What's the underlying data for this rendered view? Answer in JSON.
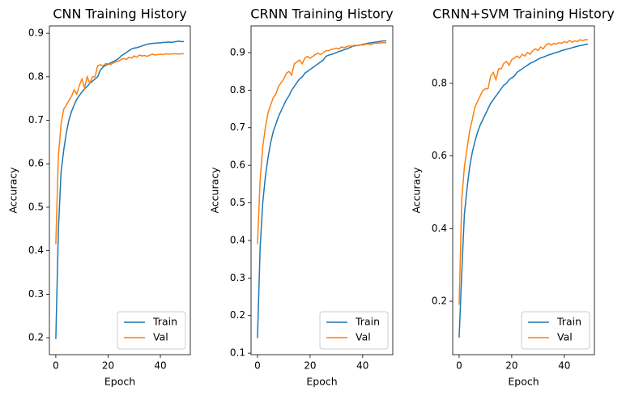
{
  "chart_data": [
    {
      "type": "line",
      "title": "CNN Training History",
      "x_label": "Epoch",
      "y_label": "Accuracy",
      "x": [
        0,
        1,
        2,
        3,
        4,
        5,
        6,
        7,
        8,
        9,
        10,
        11,
        12,
        13,
        14,
        15,
        16,
        17,
        18,
        19,
        20,
        21,
        22,
        23,
        24,
        25,
        26,
        27,
        28,
        29,
        30,
        31,
        32,
        33,
        34,
        35,
        36,
        37,
        38,
        39,
        40,
        41,
        42,
        43,
        44,
        45,
        46,
        47,
        48,
        49
      ],
      "xlim": [
        -2.45,
        51.45
      ],
      "xticks": [
        0,
        20,
        40
      ],
      "ylim": [
        0.161,
        0.917
      ],
      "yticks": [
        0.2,
        0.3,
        0.4,
        0.5,
        0.6,
        0.7,
        0.8,
        0.9
      ],
      "legend": "lower right",
      "series": [
        {
          "name": "Train",
          "color": "#1f77b4",
          "values": [
            0.197,
            0.45,
            0.58,
            0.63,
            0.67,
            0.7,
            0.72,
            0.735,
            0.748,
            0.757,
            0.765,
            0.772,
            0.778,
            0.785,
            0.79,
            0.795,
            0.8,
            0.815,
            0.822,
            0.826,
            0.829,
            0.832,
            0.835,
            0.838,
            0.842,
            0.848,
            0.852,
            0.856,
            0.86,
            0.864,
            0.866,
            0.867,
            0.869,
            0.871,
            0.873,
            0.875,
            0.876,
            0.877,
            0.877,
            0.878,
            0.878,
            0.879,
            0.879,
            0.88,
            0.879,
            0.88,
            0.881,
            0.882,
            0.881,
            0.881
          ]
        },
        {
          "name": "Val",
          "color": "#ff7f0e",
          "values": [
            0.415,
            0.62,
            0.69,
            0.725,
            0.735,
            0.745,
            0.755,
            0.77,
            0.76,
            0.78,
            0.795,
            0.775,
            0.8,
            0.785,
            0.8,
            0.8,
            0.825,
            0.828,
            0.825,
            0.83,
            0.83,
            0.828,
            0.832,
            0.835,
            0.836,
            0.84,
            0.842,
            0.84,
            0.845,
            0.843,
            0.848,
            0.845,
            0.85,
            0.848,
            0.849,
            0.847,
            0.85,
            0.852,
            0.85,
            0.851,
            0.852,
            0.851,
            0.853,
            0.852,
            0.852,
            0.853,
            0.853,
            0.852,
            0.853,
            0.853
          ]
        }
      ]
    },
    {
      "type": "line",
      "title": "CRNN Training History",
      "x_label": "Epoch",
      "y_label": "Accuracy",
      "x": [
        0,
        1,
        2,
        3,
        4,
        5,
        6,
        7,
        8,
        9,
        10,
        11,
        12,
        13,
        14,
        15,
        16,
        17,
        18,
        19,
        20,
        21,
        22,
        23,
        24,
        25,
        26,
        27,
        28,
        29,
        30,
        31,
        32,
        33,
        34,
        35,
        36,
        37,
        38,
        39,
        40,
        41,
        42,
        43,
        44,
        45,
        46,
        47,
        48,
        49
      ],
      "xlim": [
        -2.45,
        51.45
      ],
      "xticks": [
        0,
        20,
        40
      ],
      "ylim": [
        0.096,
        0.971
      ],
      "yticks": [
        0.1,
        0.2,
        0.3,
        0.4,
        0.5,
        0.6,
        0.7,
        0.8,
        0.9
      ],
      "legend": "lower right",
      "series": [
        {
          "name": "Train",
          "color": "#1f77b4",
          "values": [
            0.14,
            0.38,
            0.5,
            0.57,
            0.62,
            0.66,
            0.69,
            0.71,
            0.73,
            0.745,
            0.76,
            0.775,
            0.785,
            0.8,
            0.81,
            0.82,
            0.83,
            0.835,
            0.845,
            0.85,
            0.855,
            0.86,
            0.865,
            0.87,
            0.875,
            0.88,
            0.89,
            0.893,
            0.895,
            0.897,
            0.9,
            0.903,
            0.905,
            0.908,
            0.91,
            0.913,
            0.916,
            0.918,
            0.919,
            0.92,
            0.922,
            0.923,
            0.925,
            0.926,
            0.927,
            0.928,
            0.929,
            0.93,
            0.931,
            0.931
          ]
        },
        {
          "name": "Val",
          "color": "#ff7f0e",
          "values": [
            0.39,
            0.56,
            0.65,
            0.7,
            0.74,
            0.76,
            0.78,
            0.79,
            0.81,
            0.82,
            0.83,
            0.845,
            0.85,
            0.84,
            0.87,
            0.875,
            0.88,
            0.87,
            0.885,
            0.89,
            0.885,
            0.89,
            0.895,
            0.898,
            0.895,
            0.9,
            0.905,
            0.905,
            0.908,
            0.91,
            0.912,
            0.91,
            0.915,
            0.913,
            0.916,
            0.918,
            0.917,
            0.92,
            0.918,
            0.921,
            0.92,
            0.922,
            0.923,
            0.921,
            0.924,
            0.925,
            0.925,
            0.926,
            0.926,
            0.926
          ]
        }
      ]
    },
    {
      "type": "line",
      "title": "CRNN+SVM Training History",
      "x_label": "Epoch",
      "y_label": "Accuracy",
      "x": [
        0,
        1,
        2,
        3,
        4,
        5,
        6,
        7,
        8,
        9,
        10,
        11,
        12,
        13,
        14,
        15,
        16,
        17,
        18,
        19,
        20,
        21,
        22,
        23,
        24,
        25,
        26,
        27,
        28,
        29,
        30,
        31,
        32,
        33,
        34,
        35,
        36,
        37,
        38,
        39,
        40,
        41,
        42,
        43,
        44,
        45,
        46,
        47,
        48,
        49
      ],
      "xlim": [
        -2.45,
        51.45
      ],
      "xticks": [
        0,
        20,
        40
      ],
      "ylim": [
        0.053,
        0.958
      ],
      "yticks": [
        0.2,
        0.4,
        0.6,
        0.8
      ],
      "legend": "lower right",
      "series": [
        {
          "name": "Train",
          "color": "#1f77b4",
          "values": [
            0.1,
            0.28,
            0.44,
            0.51,
            0.57,
            0.61,
            0.64,
            0.665,
            0.685,
            0.7,
            0.715,
            0.73,
            0.745,
            0.755,
            0.765,
            0.775,
            0.785,
            0.795,
            0.8,
            0.81,
            0.815,
            0.82,
            0.83,
            0.835,
            0.84,
            0.845,
            0.85,
            0.855,
            0.858,
            0.862,
            0.866,
            0.87,
            0.872,
            0.875,
            0.878,
            0.88,
            0.883,
            0.885,
            0.887,
            0.89,
            0.892,
            0.894,
            0.896,
            0.898,
            0.9,
            0.902,
            0.904,
            0.905,
            0.907,
            0.908
          ]
        },
        {
          "name": "Val",
          "color": "#ff7f0e",
          "values": [
            0.19,
            0.48,
            0.57,
            0.62,
            0.67,
            0.7,
            0.735,
            0.75,
            0.765,
            0.78,
            0.785,
            0.785,
            0.82,
            0.83,
            0.81,
            0.84,
            0.84,
            0.855,
            0.86,
            0.85,
            0.865,
            0.87,
            0.875,
            0.87,
            0.88,
            0.875,
            0.885,
            0.88,
            0.89,
            0.895,
            0.89,
            0.9,
            0.895,
            0.905,
            0.91,
            0.905,
            0.91,
            0.908,
            0.912,
            0.91,
            0.915,
            0.912,
            0.918,
            0.913,
            0.917,
            0.915,
            0.92,
            0.918,
            0.92,
            0.92
          ]
        }
      ]
    }
  ]
}
